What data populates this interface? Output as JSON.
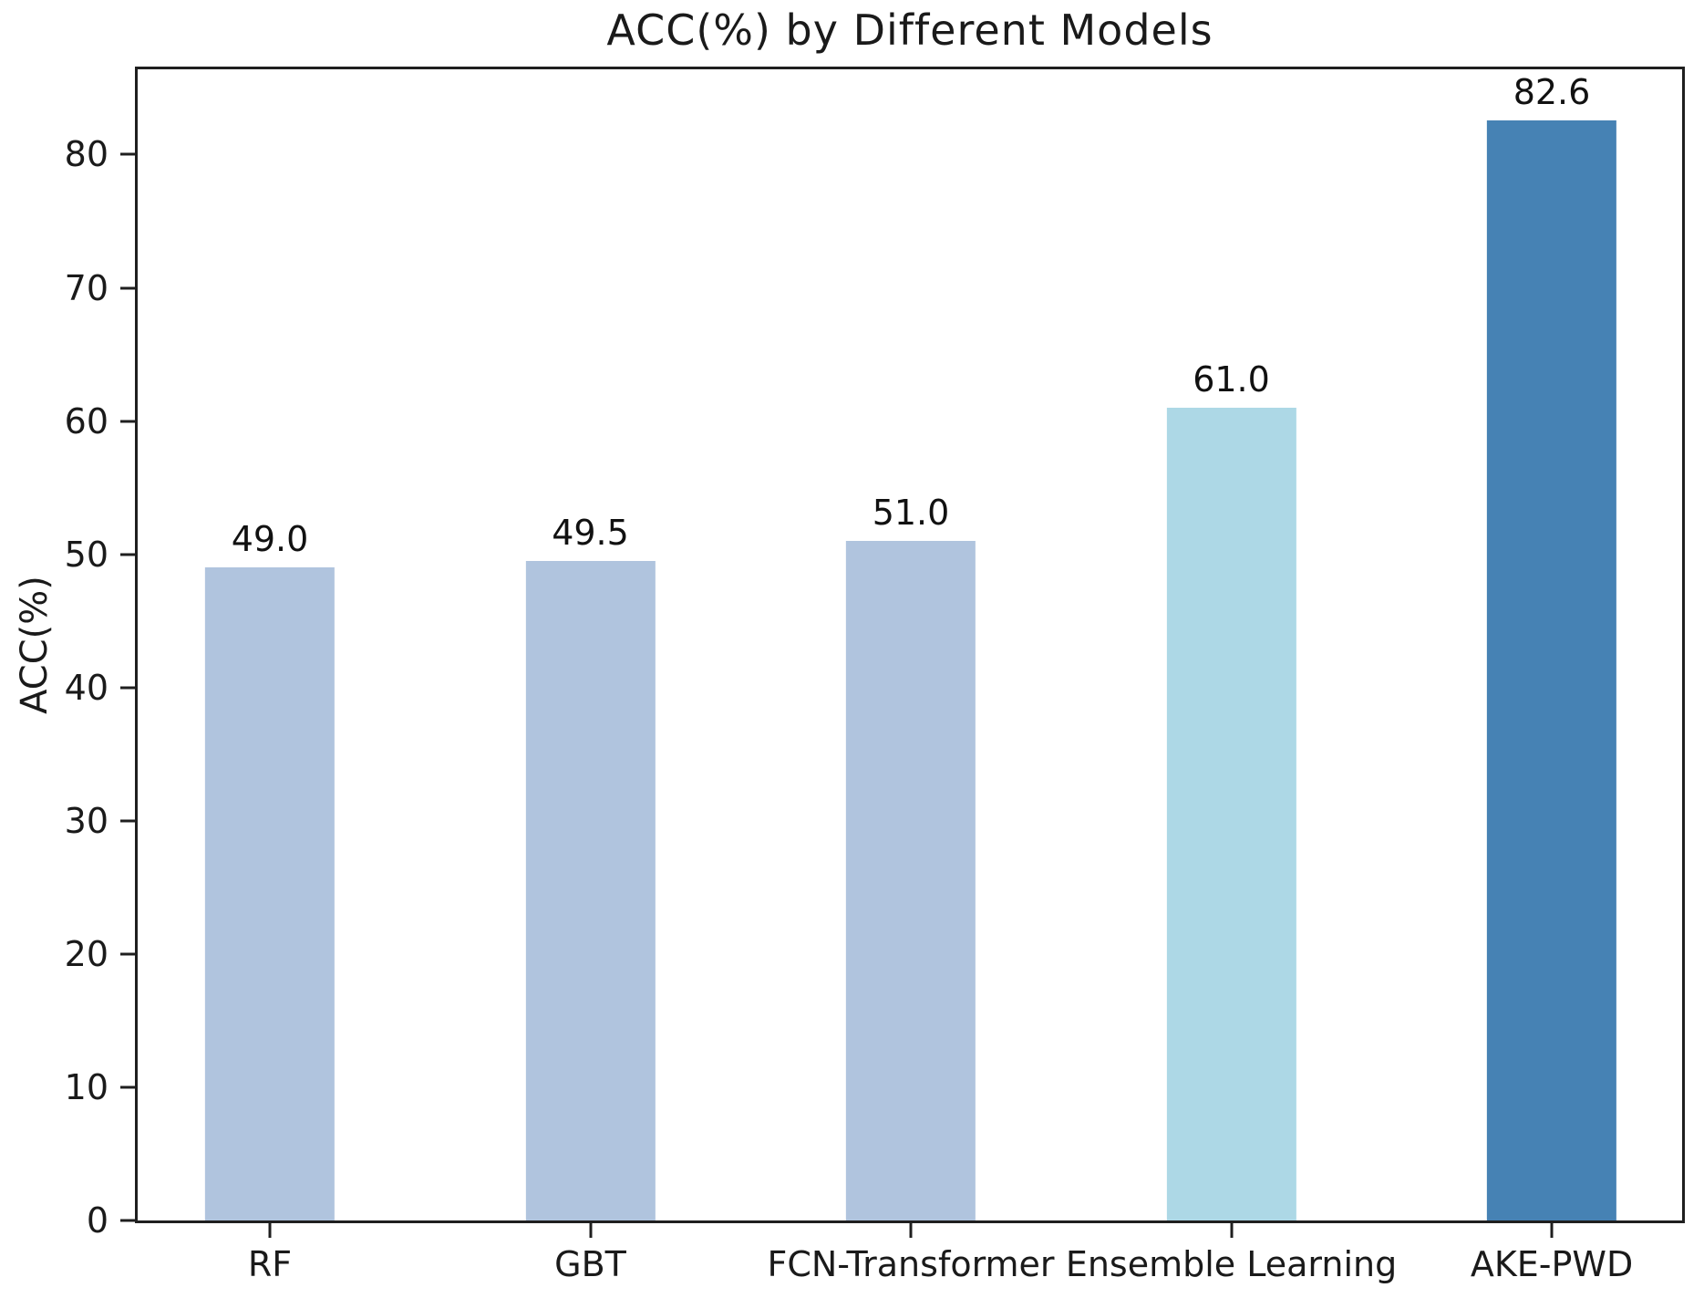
{
  "chart_data": {
    "type": "bar",
    "title": "ACC(%) by Different Models",
    "xlabel": "",
    "ylabel": "ACC(%)",
    "categories": [
      "RF",
      "GBT",
      "FCN-Transformer",
      "Ensemble Learning",
      "AKE-PWD"
    ],
    "values": [
      49.0,
      49.5,
      51.0,
      61.0,
      82.6
    ],
    "value_labels": [
      "49.0",
      "49.5",
      "51.0",
      "61.0",
      "82.6"
    ],
    "bar_colors": [
      "#b0c4de",
      "#b0c4de",
      "#b0c4de",
      "#add8e6",
      "#4682b4"
    ],
    "ylim": [
      0,
      86.4
    ],
    "yticks": [
      0,
      10,
      20,
      30,
      40,
      50,
      60,
      70,
      80
    ],
    "grid": false,
    "legend_position": "none",
    "axis_color": "#1f1f1f",
    "text_color": "#1a1a1a",
    "background_color": "#ffffff",
    "layout": {
      "first_bar_center_fraction": 0.0856,
      "bar_center_spacing_fraction": 0.2075
    }
  }
}
